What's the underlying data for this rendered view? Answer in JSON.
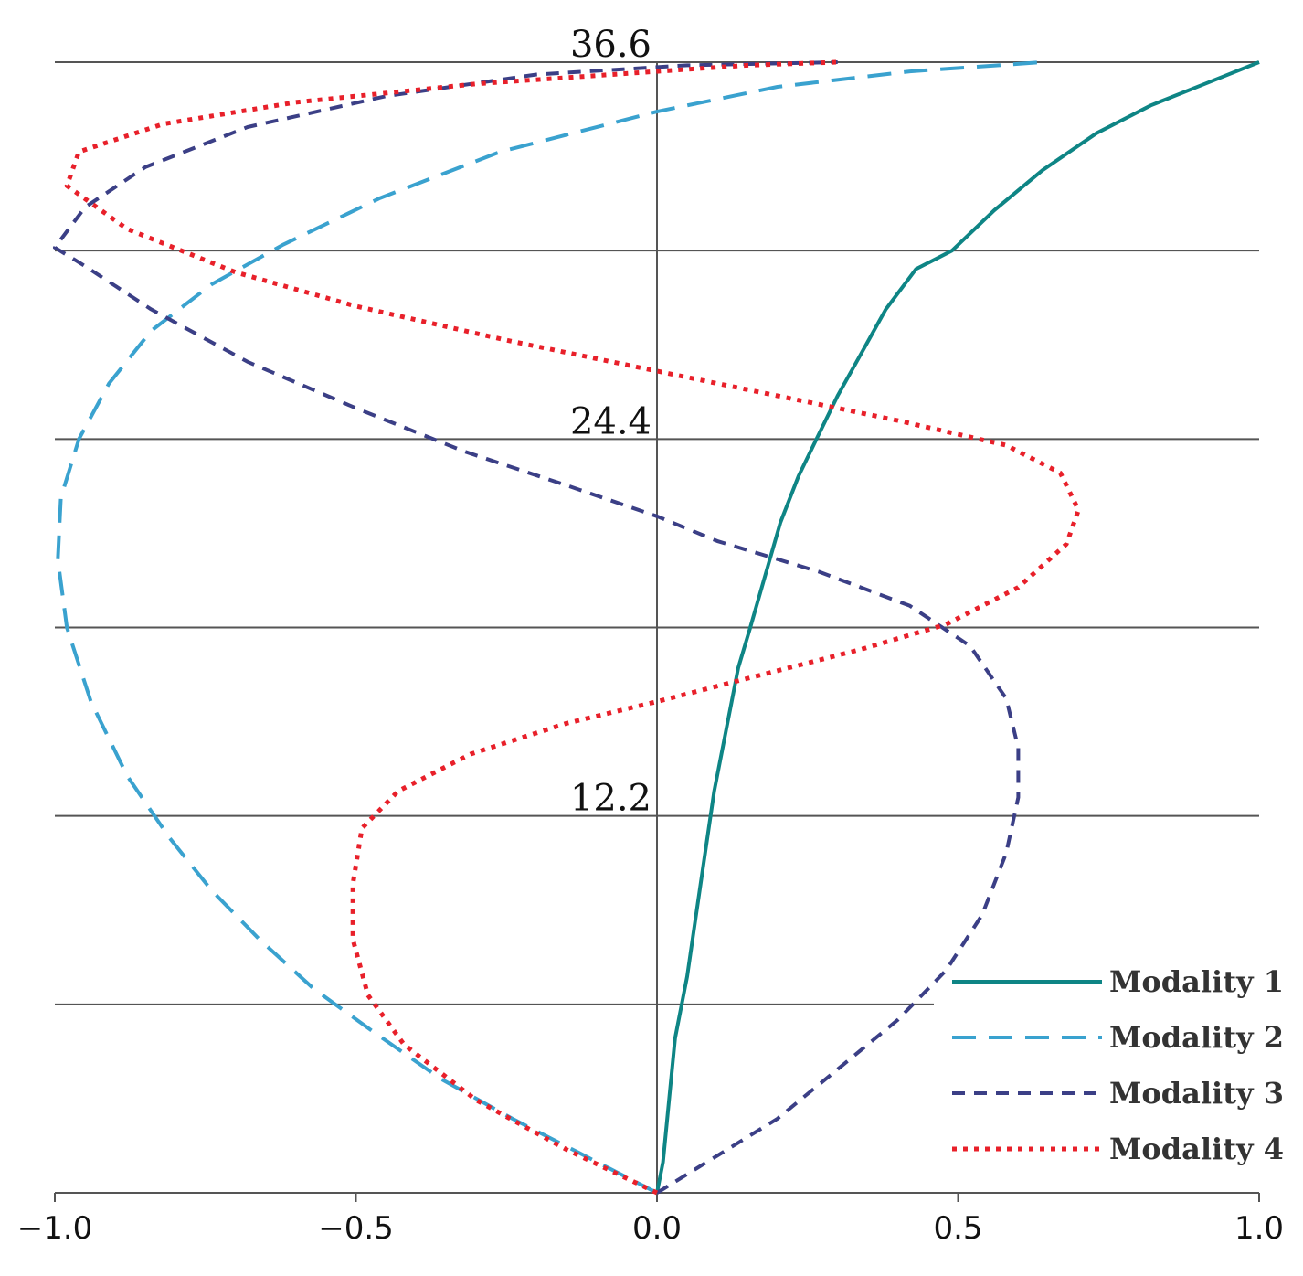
{
  "chart_data": {
    "type": "line",
    "title": "",
    "xlabel": "",
    "ylabel": "",
    "xlim": [
      -1.0,
      1.0
    ],
    "ylim": [
      0,
      36.6
    ],
    "x_ticks": [
      "−1.0",
      "−0.5",
      "0.0",
      "0.5",
      "1.0"
    ],
    "x_tick_values": [
      -1.0,
      -0.5,
      0.0,
      0.5,
      1.0
    ],
    "y_gridlines": [
      6.1,
      12.2,
      18.3,
      24.4,
      30.5,
      36.6
    ],
    "y_tick_labels": [
      {
        "value": 12.2,
        "text": "12.2"
      },
      {
        "value": 24.4,
        "text": "24.4"
      },
      {
        "value": 36.6,
        "text": "36.6"
      }
    ],
    "grid": true,
    "legend_position": "bottom-right",
    "series": [
      {
        "name": "Modality 1",
        "color": "#0e8585",
        "style": "solid",
        "points": [
          [
            0.0,
            0
          ],
          [
            0.01,
            1
          ],
          [
            0.02,
            3
          ],
          [
            0.03,
            5
          ],
          [
            0.05,
            7
          ],
          [
            0.065,
            9
          ],
          [
            0.08,
            11
          ],
          [
            0.095,
            13
          ],
          [
            0.115,
            15
          ],
          [
            0.135,
            17
          ],
          [
            0.155,
            18.3
          ],
          [
            0.18,
            20
          ],
          [
            0.205,
            21.7
          ],
          [
            0.235,
            23.2
          ],
          [
            0.265,
            24.4
          ],
          [
            0.3,
            25.8
          ],
          [
            0.34,
            27.2
          ],
          [
            0.38,
            28.6
          ],
          [
            0.43,
            29.9
          ],
          [
            0.49,
            30.5
          ],
          [
            0.56,
            31.8
          ],
          [
            0.64,
            33.1
          ],
          [
            0.73,
            34.3
          ],
          [
            0.82,
            35.2
          ],
          [
            0.91,
            35.9
          ],
          [
            1.0,
            36.6
          ]
        ]
      },
      {
        "name": "Modality 2",
        "color": "#3aa2cf",
        "style": "dashed",
        "points": [
          [
            0.0,
            0
          ],
          [
            -0.12,
            1.2
          ],
          [
            -0.24,
            2.4
          ],
          [
            -0.36,
            3.7
          ],
          [
            -0.47,
            5.2
          ],
          [
            -0.57,
            6.6
          ],
          [
            -0.66,
            8.2
          ],
          [
            -0.74,
            9.8
          ],
          [
            -0.81,
            11.5
          ],
          [
            -0.88,
            13.5
          ],
          [
            -0.94,
            15.9
          ],
          [
            -0.98,
            18.3
          ],
          [
            -0.995,
            20.5
          ],
          [
            -0.99,
            22.5
          ],
          [
            -0.96,
            24.4
          ],
          [
            -0.91,
            26.2
          ],
          [
            -0.84,
            27.9
          ],
          [
            -0.74,
            29.4
          ],
          [
            -0.62,
            30.7
          ],
          [
            -0.46,
            32.2
          ],
          [
            -0.26,
            33.7
          ],
          [
            0.0,
            35.0
          ],
          [
            0.2,
            35.8
          ],
          [
            0.42,
            36.3
          ],
          [
            0.64,
            36.6
          ]
        ]
      },
      {
        "name": "Modality 3",
        "color": "#3b3f86",
        "style": "dashed",
        "points": [
          [
            0.0,
            0
          ],
          [
            0.1,
            1.2
          ],
          [
            0.2,
            2.4
          ],
          [
            0.3,
            4.0
          ],
          [
            0.4,
            5.6
          ],
          [
            0.48,
            7.2
          ],
          [
            0.54,
            9.0
          ],
          [
            0.58,
            11.0
          ],
          [
            0.6,
            12.8
          ],
          [
            0.6,
            14.4
          ],
          [
            0.58,
            16.0
          ],
          [
            0.52,
            17.7
          ],
          [
            0.42,
            19.0
          ],
          [
            0.27,
            20.1
          ],
          [
            0.1,
            21.1
          ],
          [
            0.0,
            21.9
          ],
          [
            -0.15,
            22.9
          ],
          [
            -0.32,
            24.0
          ],
          [
            -0.5,
            25.4
          ],
          [
            -0.68,
            26.9
          ],
          [
            -0.84,
            28.6
          ],
          [
            -0.95,
            30.0
          ],
          [
            -1.0,
            30.6
          ],
          [
            -0.95,
            31.9
          ],
          [
            -0.85,
            33.2
          ],
          [
            -0.68,
            34.5
          ],
          [
            -0.45,
            35.5
          ],
          [
            -0.2,
            36.2
          ],
          [
            0.05,
            36.5
          ],
          [
            0.3,
            36.6
          ]
        ]
      },
      {
        "name": "Modality 4",
        "color": "#e8202a",
        "style": "dotted",
        "points": [
          [
            0.0,
            0
          ],
          [
            -0.15,
            1.4
          ],
          [
            -0.3,
            3.0
          ],
          [
            -0.42,
            4.8
          ],
          [
            -0.48,
            6.4
          ],
          [
            -0.505,
            8.2
          ],
          [
            -0.505,
            10.0
          ],
          [
            -0.49,
            11.8
          ],
          [
            -0.43,
            13.0
          ],
          [
            -0.31,
            14.2
          ],
          [
            -0.15,
            15.2
          ],
          [
            0.0,
            15.9
          ],
          [
            0.18,
            16.8
          ],
          [
            0.34,
            17.6
          ],
          [
            0.48,
            18.4
          ],
          [
            0.6,
            19.6
          ],
          [
            0.68,
            21.0
          ],
          [
            0.7,
            22.1
          ],
          [
            0.67,
            23.3
          ],
          [
            0.58,
            24.2
          ],
          [
            0.4,
            25.0
          ],
          [
            0.2,
            25.8
          ],
          [
            0.0,
            26.6
          ],
          [
            -0.25,
            27.6
          ],
          [
            -0.5,
            28.7
          ],
          [
            -0.7,
            29.8
          ],
          [
            -0.88,
            31.2
          ],
          [
            -0.98,
            32.6
          ],
          [
            -0.96,
            33.7
          ],
          [
            -0.82,
            34.6
          ],
          [
            -0.6,
            35.3
          ],
          [
            -0.3,
            35.9
          ],
          [
            0.0,
            36.3
          ],
          [
            0.15,
            36.5
          ],
          [
            0.3,
            36.6
          ]
        ]
      }
    ]
  }
}
